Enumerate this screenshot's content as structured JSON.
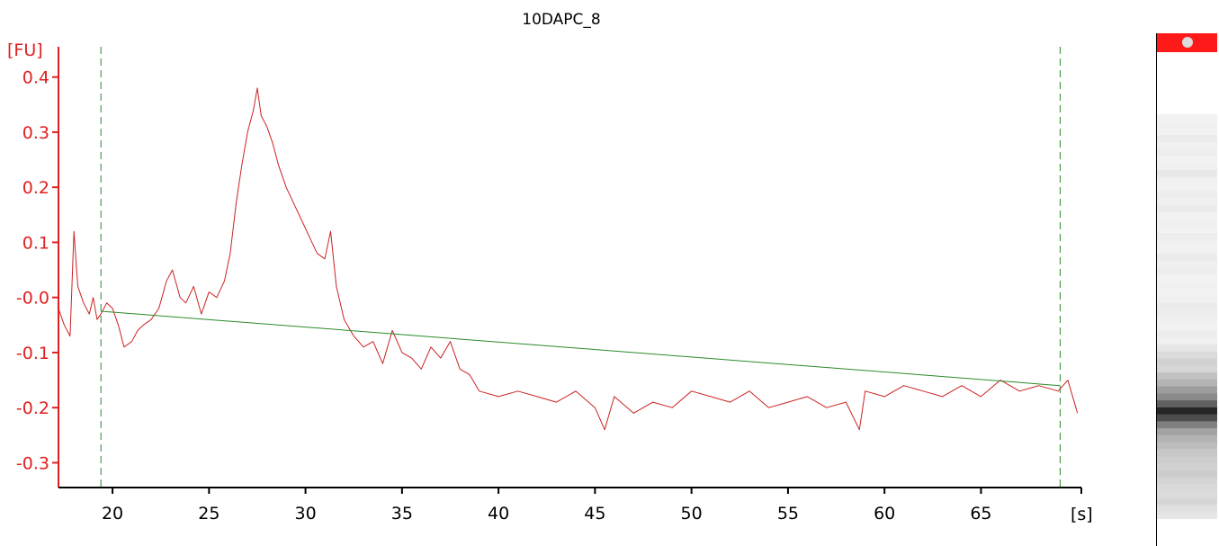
{
  "chart_data": {
    "type": "line",
    "title": "10DAPC_8",
    "ylabel": "[FU]",
    "xlabel": "[s]",
    "xlim": [
      17.2,
      70.2
    ],
    "ylim": [
      -0.345,
      0.455
    ],
    "x_ticks": [
      20,
      25,
      30,
      35,
      40,
      45,
      50,
      55,
      60,
      65
    ],
    "y_ticks": [
      0.4,
      0.3,
      0.2,
      0.1,
      0.0,
      -0.1,
      -0.2,
      -0.3
    ],
    "y_tick_labels": [
      "0.4",
      "0.3",
      "0.2",
      "0.1",
      "-0.0",
      "-0.1",
      "-0.2",
      "-0.3"
    ],
    "markers_x": [
      19.4,
      69.1
    ],
    "series": [
      {
        "color": "#cc2222",
        "x": [
          17.2,
          17.5,
          17.8,
          18.0,
          18.2,
          18.5,
          18.8,
          19.0,
          19.2,
          19.4,
          19.7,
          20.0,
          20.3,
          20.6,
          21.0,
          21.3,
          21.6,
          22.0,
          22.4,
          22.8,
          23.1,
          23.5,
          23.8,
          24.2,
          24.6,
          25.0,
          25.4,
          25.8,
          26.1,
          26.4,
          26.7,
          27.0,
          27.3,
          27.5,
          27.7,
          28.0,
          28.3,
          28.6,
          29.0,
          29.4,
          29.8,
          30.2,
          30.6,
          31.0,
          31.3,
          31.6,
          32.0,
          32.5,
          33.0,
          33.5,
          34.0,
          34.5,
          35.0,
          35.5,
          36.0,
          36.5,
          37.0,
          37.5,
          38.0,
          38.5,
          39.0,
          40.0,
          41.0,
          42.0,
          43.0,
          44.0,
          45.0,
          45.5,
          46.0,
          47.0,
          48.0,
          49.0,
          50.0,
          51.0,
          52.0,
          53.0,
          54.0,
          55.0,
          56.0,
          57.0,
          58.0,
          58.7,
          59.0,
          60.0,
          61.0,
          62.0,
          63.0,
          64.0,
          65.0,
          66.0,
          67.0,
          68.0,
          69.0,
          69.5,
          70.0
        ],
        "y": [
          -0.02,
          -0.05,
          -0.07,
          0.12,
          0.02,
          -0.01,
          -0.03,
          0.0,
          -0.04,
          -0.03,
          -0.01,
          -0.02,
          -0.05,
          -0.09,
          -0.08,
          -0.06,
          -0.05,
          -0.04,
          -0.02,
          0.03,
          0.05,
          0.0,
          -0.01,
          0.02,
          -0.03,
          0.01,
          0.0,
          0.03,
          0.08,
          0.17,
          0.24,
          0.3,
          0.34,
          0.38,
          0.33,
          0.31,
          0.28,
          0.24,
          0.2,
          0.17,
          0.14,
          0.11,
          0.08,
          0.07,
          0.12,
          0.02,
          -0.04,
          -0.07,
          -0.09,
          -0.08,
          -0.12,
          -0.06,
          -0.1,
          -0.11,
          -0.13,
          -0.09,
          -0.11,
          -0.08,
          -0.13,
          -0.14,
          -0.17,
          -0.18,
          -0.17,
          -0.18,
          -0.19,
          -0.17,
          -0.2,
          -0.24,
          -0.18,
          -0.21,
          -0.19,
          -0.2,
          -0.17,
          -0.18,
          -0.19,
          -0.17,
          -0.2,
          -0.19,
          -0.18,
          -0.2,
          -0.19,
          -0.24,
          -0.17,
          -0.18,
          -0.16,
          -0.17,
          -0.18,
          -0.16,
          -0.18,
          -0.15,
          -0.17,
          -0.16,
          -0.17,
          -0.15,
          -0.21
        ]
      },
      {
        "color": "#2a8a2a",
        "x": [
          19.4,
          69.1
        ],
        "y": [
          -0.025,
          -0.16
        ]
      }
    ]
  },
  "lane": {
    "marker_color": "#ff1a1a",
    "band_profile": [
      0.05,
      0.06,
      0.05,
      0.08,
      0.06,
      0.07,
      0.05,
      0.06,
      0.09,
      0.06,
      0.05,
      0.07,
      0.06,
      0.08,
      0.05,
      0.06,
      0.05,
      0.07,
      0.06,
      0.05,
      0.08,
      0.06,
      0.07,
      0.05,
      0.06,
      0.05,
      0.06,
      0.08,
      0.07,
      0.06,
      0.05,
      0.07,
      0.06,
      0.1,
      0.14,
      0.18,
      0.16,
      0.24,
      0.3,
      0.38,
      0.46,
      0.62,
      0.85,
      0.7,
      0.5,
      0.36,
      0.3,
      0.26,
      0.22,
      0.2,
      0.18,
      0.2,
      0.17,
      0.15,
      0.14,
      0.16,
      0.12,
      0.1
    ]
  }
}
